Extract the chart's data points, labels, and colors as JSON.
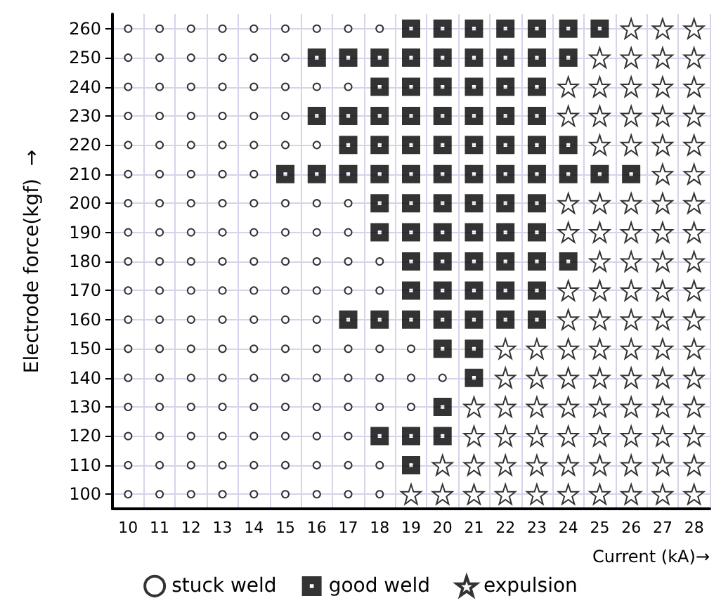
{
  "chart_data": {
    "type": "scatter",
    "xlabel": "Current (kA)→",
    "ylabel": "Electrode force(kgf)  →",
    "categories": [
      "10",
      "11",
      "12",
      "13",
      "14",
      "15",
      "16",
      "17",
      "18",
      "19",
      "20",
      "21",
      "22",
      "23",
      "24",
      "25",
      "26",
      "27",
      "28"
    ],
    "ylim": [
      95,
      265
    ],
    "yticks": [
      100,
      110,
      120,
      130,
      140,
      150,
      160,
      170,
      180,
      190,
      200,
      210,
      220,
      230,
      240,
      250,
      260
    ],
    "grid": true,
    "legend": "bottom",
    "series": [
      {
        "name": "stuck weld",
        "color": "#000000",
        "marker": "circle",
        "x": [
          "10",
          "11",
          "12",
          "13",
          "14",
          "15",
          "16",
          "17",
          "18",
          "10",
          "11",
          "12",
          "13",
          "14",
          "15",
          "10",
          "11",
          "12",
          "13",
          "14",
          "15",
          "16",
          "17",
          "10",
          "11",
          "12",
          "13",
          "14",
          "15",
          "10",
          "11",
          "12",
          "13",
          "14",
          "15",
          "16",
          "10",
          "11",
          "12",
          "13",
          "14",
          "10",
          "11",
          "12",
          "13",
          "14",
          "15",
          "16",
          "17",
          "10",
          "11",
          "12",
          "13",
          "14",
          "15",
          "16",
          "17",
          "10",
          "11",
          "12",
          "13",
          "14",
          "15",
          "16",
          "17",
          "18",
          "10",
          "11",
          "12",
          "13",
          "14",
          "15",
          "16",
          "17",
          "18",
          "10",
          "11",
          "12",
          "13",
          "14",
          "15",
          "16",
          "10",
          "11",
          "12",
          "13",
          "14",
          "15",
          "16",
          "17",
          "18",
          "19",
          "10",
          "11",
          "12",
          "13",
          "14",
          "15",
          "16",
          "17",
          "18",
          "19",
          "20",
          "10",
          "11",
          "12",
          "13",
          "14",
          "15",
          "16",
          "17",
          "18",
          "19",
          "10",
          "11",
          "12",
          "13",
          "14",
          "15",
          "16",
          "17",
          "10",
          "11",
          "12",
          "13",
          "14",
          "15",
          "16",
          "17",
          "18",
          "10",
          "11",
          "12",
          "13",
          "14",
          "15",
          "16",
          "17",
          "18"
        ],
        "values": [
          260,
          260,
          260,
          260,
          260,
          260,
          260,
          260,
          260,
          250,
          250,
          250,
          250,
          250,
          250,
          240,
          240,
          240,
          240,
          240,
          240,
          240,
          240,
          230,
          230,
          230,
          230,
          230,
          230,
          220,
          220,
          220,
          220,
          220,
          220,
          220,
          210,
          210,
          210,
          210,
          210,
          200,
          200,
          200,
          200,
          200,
          200,
          200,
          200,
          190,
          190,
          190,
          190,
          190,
          190,
          190,
          190,
          180,
          180,
          180,
          180,
          180,
          180,
          180,
          180,
          180,
          170,
          170,
          170,
          170,
          170,
          170,
          170,
          170,
          170,
          160,
          160,
          160,
          160,
          160,
          160,
          160,
          150,
          150,
          150,
          150,
          150,
          150,
          150,
          150,
          150,
          150,
          140,
          140,
          140,
          140,
          140,
          140,
          140,
          140,
          140,
          140,
          140,
          130,
          130,
          130,
          130,
          130,
          130,
          130,
          130,
          130,
          130,
          120,
          120,
          120,
          120,
          120,
          120,
          120,
          120,
          110,
          110,
          110,
          110,
          110,
          110,
          110,
          110,
          110,
          100,
          100,
          100,
          100,
          100,
          100,
          100,
          100,
          100
        ]
      },
      {
        "name": "good weld",
        "color": "#000000",
        "marker": "square",
        "x": [
          "19",
          "20",
          "21",
          "22",
          "23",
          "24",
          "25",
          "16",
          "17",
          "18",
          "19",
          "20",
          "21",
          "22",
          "23",
          "24",
          "18",
          "19",
          "20",
          "21",
          "22",
          "23",
          "16",
          "17",
          "18",
          "19",
          "20",
          "21",
          "22",
          "23",
          "17",
          "18",
          "19",
          "20",
          "21",
          "22",
          "23",
          "24",
          "15",
          "16",
          "17",
          "18",
          "19",
          "20",
          "21",
          "22",
          "23",
          "24",
          "25",
          "26",
          "18",
          "19",
          "20",
          "21",
          "22",
          "23",
          "18",
          "19",
          "20",
          "21",
          "22",
          "23",
          "19",
          "20",
          "21",
          "22",
          "23",
          "24",
          "19",
          "20",
          "21",
          "22",
          "23",
          "17",
          "18",
          "19",
          "20",
          "21",
          "22",
          "23",
          "20",
          "21",
          "21",
          "20",
          "18",
          "19",
          "20",
          "19"
        ],
        "values": [
          260,
          260,
          260,
          260,
          260,
          260,
          260,
          250,
          250,
          250,
          250,
          250,
          250,
          250,
          250,
          250,
          240,
          240,
          240,
          240,
          240,
          240,
          230,
          230,
          230,
          230,
          230,
          230,
          230,
          230,
          220,
          220,
          220,
          220,
          220,
          220,
          220,
          220,
          210,
          210,
          210,
          210,
          210,
          210,
          210,
          210,
          210,
          210,
          210,
          210,
          200,
          200,
          200,
          200,
          200,
          200,
          190,
          190,
          190,
          190,
          190,
          190,
          180,
          180,
          180,
          180,
          180,
          180,
          170,
          170,
          170,
          170,
          170,
          160,
          160,
          160,
          160,
          160,
          160,
          160,
          150,
          150,
          140,
          130,
          120,
          120,
          120,
          110
        ]
      },
      {
        "name": "expulsion",
        "color": "#000000",
        "marker": "star",
        "x": [
          "26",
          "27",
          "28",
          "25",
          "26",
          "27",
          "28",
          "24",
          "25",
          "26",
          "27",
          "28",
          "24",
          "25",
          "26",
          "27",
          "28",
          "25",
          "26",
          "27",
          "28",
          "27",
          "28",
          "24",
          "25",
          "26",
          "27",
          "28",
          "24",
          "25",
          "26",
          "27",
          "28",
          "25",
          "26",
          "27",
          "28",
          "24",
          "25",
          "26",
          "27",
          "28",
          "24",
          "25",
          "26",
          "27",
          "28",
          "22",
          "23",
          "24",
          "25",
          "26",
          "27",
          "28",
          "22",
          "23",
          "24",
          "25",
          "26",
          "27",
          "28",
          "21",
          "22",
          "23",
          "24",
          "25",
          "26",
          "27",
          "28",
          "21",
          "22",
          "23",
          "24",
          "25",
          "26",
          "27",
          "28",
          "20",
          "21",
          "22",
          "23",
          "24",
          "25",
          "26",
          "27",
          "28",
          "19",
          "20",
          "21",
          "22",
          "23",
          "24",
          "25",
          "26",
          "27",
          "28"
        ],
        "values": [
          260,
          260,
          260,
          250,
          250,
          250,
          250,
          240,
          240,
          240,
          240,
          240,
          230,
          230,
          230,
          230,
          230,
          220,
          220,
          220,
          220,
          210,
          210,
          200,
          200,
          200,
          200,
          200,
          190,
          190,
          190,
          190,
          190,
          180,
          180,
          180,
          180,
          170,
          170,
          170,
          170,
          170,
          160,
          160,
          160,
          160,
          160,
          150,
          150,
          150,
          150,
          150,
          150,
          150,
          140,
          140,
          140,
          140,
          140,
          140,
          140,
          130,
          130,
          130,
          130,
          130,
          130,
          130,
          130,
          120,
          120,
          120,
          120,
          120,
          120,
          120,
          120,
          110,
          110,
          110,
          110,
          110,
          110,
          110,
          110,
          110,
          100,
          100,
          100,
          100,
          100,
          100,
          100,
          100,
          100,
          100
        ]
      }
    ]
  }
}
